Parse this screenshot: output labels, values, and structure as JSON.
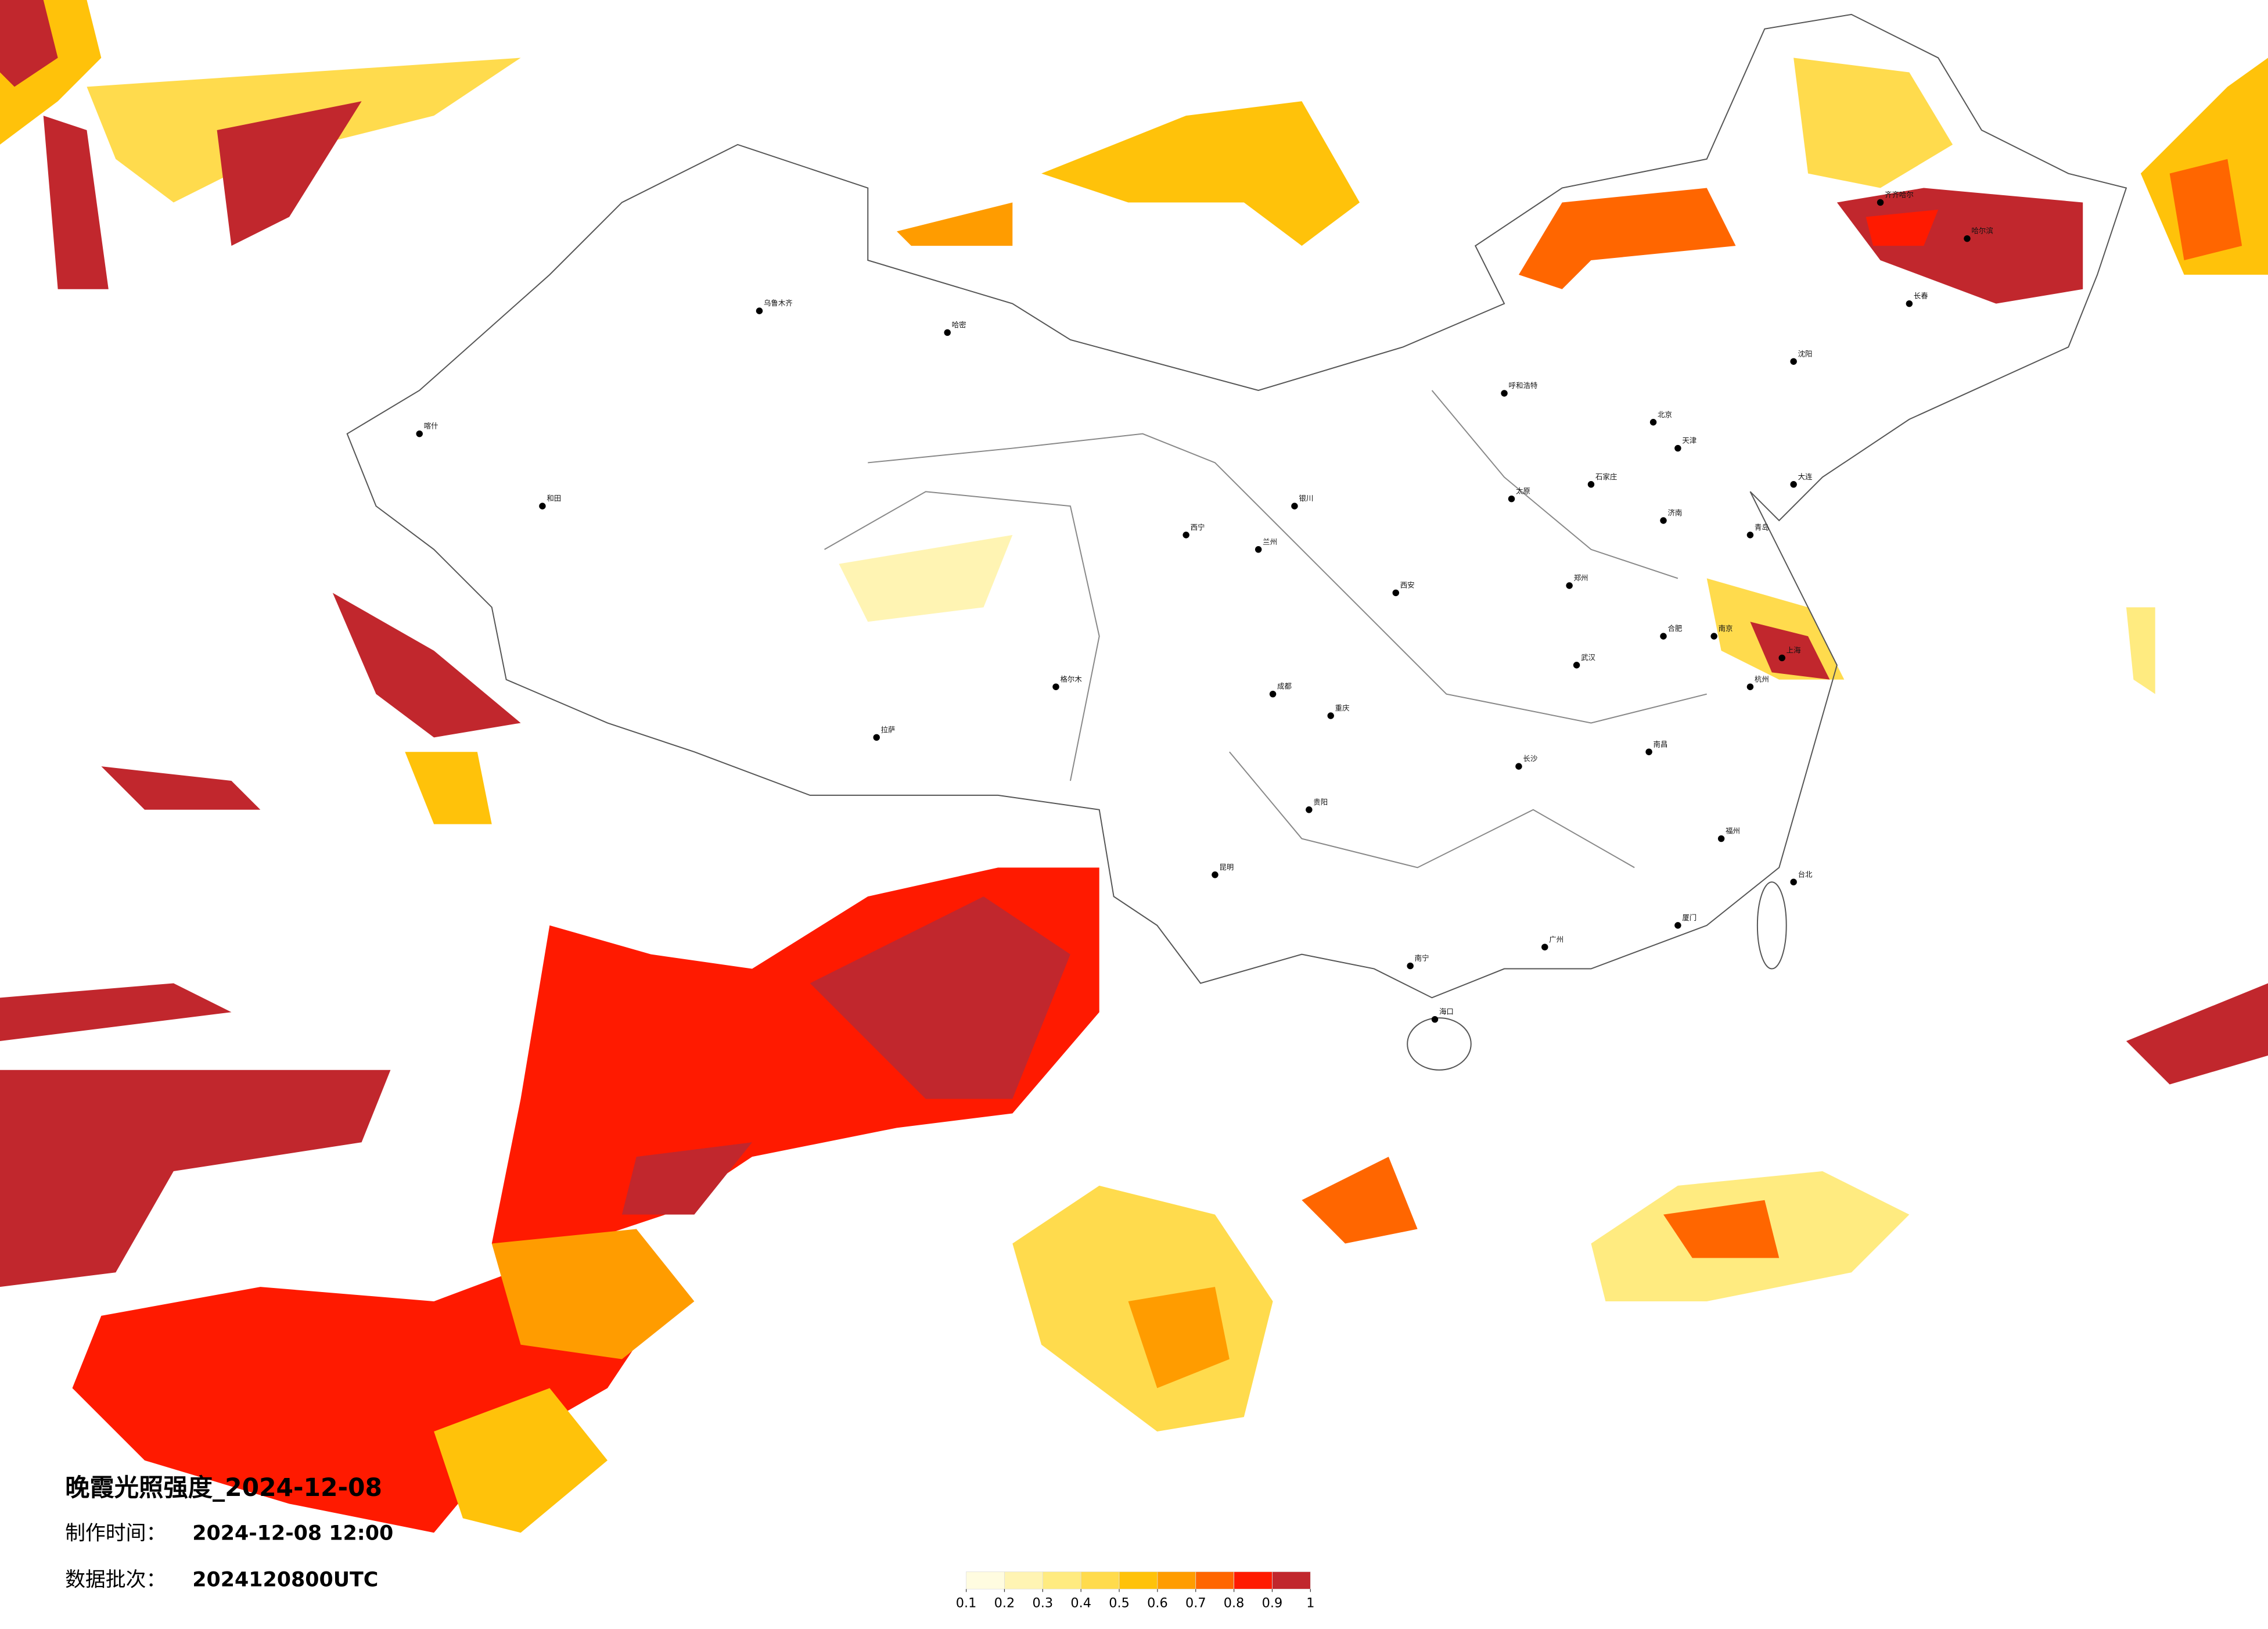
{
  "header": {
    "title": "晚霞光照强度_2024-12-08",
    "made_label": "制作时间：",
    "made_time": "2024-12-08 12:00",
    "batch_label": "数据批次：",
    "batch": "2024120800UTC"
  },
  "legend": {
    "colors": [
      "#fffce0",
      "#fff4b3",
      "#ffeb80",
      "#ffdb4d",
      "#ffc20a",
      "#ff9c00",
      "#ff6600",
      "#ff1a00",
      "#c1272d"
    ],
    "ticks": [
      0.1,
      0.2,
      0.3,
      0.4,
      0.5,
      0.6,
      0.7,
      0.8,
      0.9,
      1
    ]
  },
  "cities": [
    "北京",
    "天津",
    "石家庄",
    "太原",
    "呼和浩特",
    "沈阳",
    "长春",
    "哈尔滨",
    "齐齐哈尔",
    "上海",
    "南京",
    "杭州",
    "合肥",
    "福州",
    "南昌",
    "济南",
    "郑州",
    "武汉",
    "长沙",
    "广州",
    "南宁",
    "海口",
    "成都",
    "贵阳",
    "昆明",
    "拉萨",
    "西安",
    "兰州",
    "西宁",
    "银川",
    "乌鲁木齐",
    "哈密",
    "喀什",
    "和田",
    "格尔木",
    "台北",
    "重庆",
    "厦门",
    "青岛",
    "大连"
  ]
}
